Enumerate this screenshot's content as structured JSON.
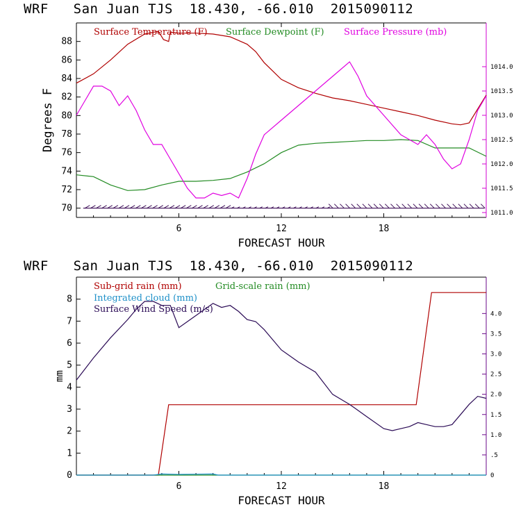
{
  "chart_data": [
    {
      "type": "line",
      "title": "WRF   San Juan TJS  18.430, -66.010  2015090112",
      "xlabel": "FORECAST HOUR",
      "ylabel": "Degrees F",
      "xlim": [
        0,
        24
      ],
      "ylim": [
        69,
        90
      ],
      "y2lim": [
        1010.9,
        1014.9
      ],
      "xticks": [
        "6",
        "12",
        "18"
      ],
      "yticks": [
        "70",
        "72",
        "74",
        "76",
        "78",
        "80",
        "82",
        "84",
        "86",
        "88"
      ],
      "y2ticks": [
        "1011.0",
        "1011.5",
        "1012.0",
        "1012.5",
        "1013.0",
        "1013.5",
        "1014.0"
      ],
      "series": [
        {
          "name": "Surface Temperature (F)",
          "color": "#b00000",
          "axis": "left",
          "x": [
            0,
            1,
            2,
            3,
            4,
            4.8,
            5.1,
            5.4,
            5.5,
            6,
            7,
            8,
            9,
            10,
            10.5,
            11,
            12,
            13,
            14,
            15,
            16,
            17,
            18,
            19,
            20,
            21,
            22,
            22.5,
            23,
            24
          ],
          "y": [
            83.5,
            84.5,
            86.0,
            87.7,
            88.8,
            89.1,
            88.2,
            88.0,
            89.0,
            88.9,
            88.9,
            88.8,
            88.5,
            87.7,
            86.9,
            85.7,
            83.9,
            83.0,
            82.4,
            81.9,
            81.6,
            81.2,
            80.8,
            80.4,
            80.0,
            79.5,
            79.1,
            79.0,
            79.2,
            82.2
          ]
        },
        {
          "name": "Surface Dewpoint (F)",
          "color": "#228b22",
          "axis": "left",
          "x": [
            0,
            1,
            2,
            3,
            4,
            5,
            6,
            7,
            8,
            9,
            10,
            11,
            12,
            13,
            14,
            15,
            16,
            17,
            18,
            19,
            20,
            21,
            22,
            23,
            24
          ],
          "y": [
            73.6,
            73.4,
            72.5,
            71.9,
            72.0,
            72.5,
            72.9,
            72.9,
            73.0,
            73.2,
            73.9,
            74.8,
            76.0,
            76.8,
            77.0,
            77.1,
            77.2,
            77.3,
            77.3,
            77.4,
            77.3,
            76.5,
            76.5,
            76.5,
            75.6
          ]
        },
        {
          "name": "Surface Pressure (mb)",
          "color": "#e000e0",
          "axis": "right",
          "x": [
            0,
            0.5,
            1,
            1.5,
            2,
            2.5,
            3,
            3.5,
            4,
            4.5,
            5,
            5.5,
            6,
            6.5,
            7,
            7.5,
            8,
            8.5,
            9,
            9.5,
            10,
            10.5,
            11,
            12,
            13,
            14,
            15,
            16,
            16.5,
            17,
            18,
            19,
            19.5,
            20,
            20.5,
            21,
            21.5,
            22,
            22.5,
            23,
            23.5,
            24
          ],
          "y": [
            1013.0,
            1013.3,
            1013.6,
            1013.6,
            1013.5,
            1013.2,
            1013.4,
            1013.1,
            1012.7,
            1012.4,
            1012.4,
            1012.1,
            1011.8,
            1011.5,
            1011.3,
            1011.3,
            1011.4,
            1011.35,
            1011.4,
            1011.3,
            1011.7,
            1012.2,
            1012.6,
            1012.9,
            1013.2,
            1013.5,
            1013.8,
            1014.1,
            1013.8,
            1013.4,
            1013.0,
            1012.6,
            1012.5,
            1012.4,
            1012.6,
            1012.4,
            1012.1,
            1011.9,
            1012.0,
            1012.5,
            1013.1,
            1013.4
          ]
        }
      ],
      "wind_barbs": "shown along 70 F line"
    },
    {
      "type": "line",
      "title": "WRF   San Juan TJS  18.430, -66.010  2015090112",
      "xlabel": "FORECAST HOUR",
      "ylabel": "mm",
      "xlim": [
        0,
        24
      ],
      "ylim": [
        0,
        9
      ],
      "y2lim": [
        0,
        4.9
      ],
      "xticks": [
        "6",
        "12",
        "18"
      ],
      "yticks": [
        "0",
        "1",
        "2",
        "3",
        "4",
        "5",
        "6",
        "7",
        "8"
      ],
      "y2ticks": [
        "0",
        ".5",
        "1.0",
        "1.5",
        "2.0",
        "2.5",
        "3.0",
        "3.5",
        "4.0"
      ],
      "series": [
        {
          "name": "Sub-grid rain (mm)",
          "color": "#b00000",
          "axis": "left",
          "x": [
            0,
            4.8,
            5.4,
            6,
            12,
            18,
            19.9,
            20.8,
            21,
            24
          ],
          "y": [
            0,
            0,
            3.2,
            3.2,
            3.2,
            3.2,
            3.2,
            8.3,
            8.3,
            8.3
          ]
        },
        {
          "name": "Grid-scale rain (mm)",
          "color": "#228b22",
          "axis": "left",
          "x": [
            0,
            24
          ],
          "y": [
            0,
            0
          ]
        },
        {
          "name": "Integrated cloud (mm)",
          "color": "#1e90c8",
          "axis": "left",
          "x": [
            0,
            4.5,
            5,
            6,
            7,
            8,
            8.3,
            24
          ],
          "y": [
            0,
            0,
            0.05,
            0.03,
            0.04,
            0.05,
            0,
            0
          ]
        },
        {
          "name": "Surface Wind Speed (m/s)",
          "color": "#2a0a55",
          "axis": "right",
          "x": [
            0,
            1,
            2,
            3,
            3.5,
            4,
            4.5,
            5,
            5.5,
            6,
            6.5,
            7,
            7.5,
            8,
            8.5,
            9,
            9.5,
            10,
            10.5,
            11,
            12,
            13,
            14,
            15,
            16,
            17,
            18,
            18.5,
            19,
            19.5,
            20,
            20.5,
            21,
            21.5,
            22,
            22.5,
            23,
            23.5,
            24
          ],
          "y": [
            2.35,
            2.9,
            3.4,
            3.85,
            4.1,
            4.3,
            4.3,
            4.2,
            4.2,
            3.65,
            3.8,
            3.95,
            4.1,
            4.25,
            4.15,
            4.2,
            4.05,
            3.85,
            3.8,
            3.6,
            3.1,
            2.8,
            2.55,
            2.0,
            1.75,
            1.45,
            1.15,
            1.1,
            1.15,
            1.2,
            1.3,
            1.25,
            1.2,
            1.2,
            1.25,
            1.5,
            1.75,
            1.95,
            1.9
          ]
        }
      ]
    }
  ]
}
